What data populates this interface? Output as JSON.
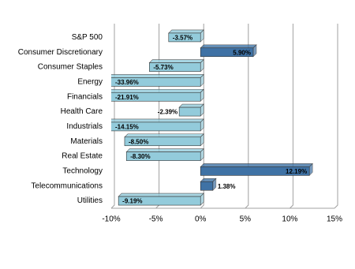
{
  "chart_data": {
    "type": "bar",
    "orientation": "horizontal",
    "categories": [
      "S&P 500",
      "Consumer Discretionary",
      "Consumer Staples",
      "Energy",
      "Financials",
      "Health Care",
      "Industrials",
      "Materials",
      "Real Estate",
      "Technology",
      "Telecommunications",
      "Utilities"
    ],
    "values": [
      -3.57,
      5.9,
      -5.73,
      -33.96,
      -21.91,
      -2.39,
      -14.15,
      -8.5,
      -8.3,
      12.19,
      1.38,
      -9.19
    ],
    "value_labels": [
      "-3.57%",
      "5.90%",
      "-5.73%",
      "-33.96%",
      "-21.91%",
      "-2.39%",
      "-14.15%",
      "-8.50%",
      "-8.30%",
      "12.19%",
      "1.38%",
      "-9.19%"
    ],
    "color_positive": "#3f72a5",
    "color_negative": "#93cbdb",
    "xlim": [
      -10,
      15
    ],
    "xticks": [
      {
        "value": -10,
        "label": "-10%"
      },
      {
        "value": -5,
        "label": "-5%"
      },
      {
        "value": 0,
        "label": "0%"
      },
      {
        "value": 5,
        "label": "5%"
      },
      {
        "value": 10,
        "label": "10%"
      },
      {
        "value": 15,
        "label": "15%"
      }
    ],
    "grid": true
  }
}
